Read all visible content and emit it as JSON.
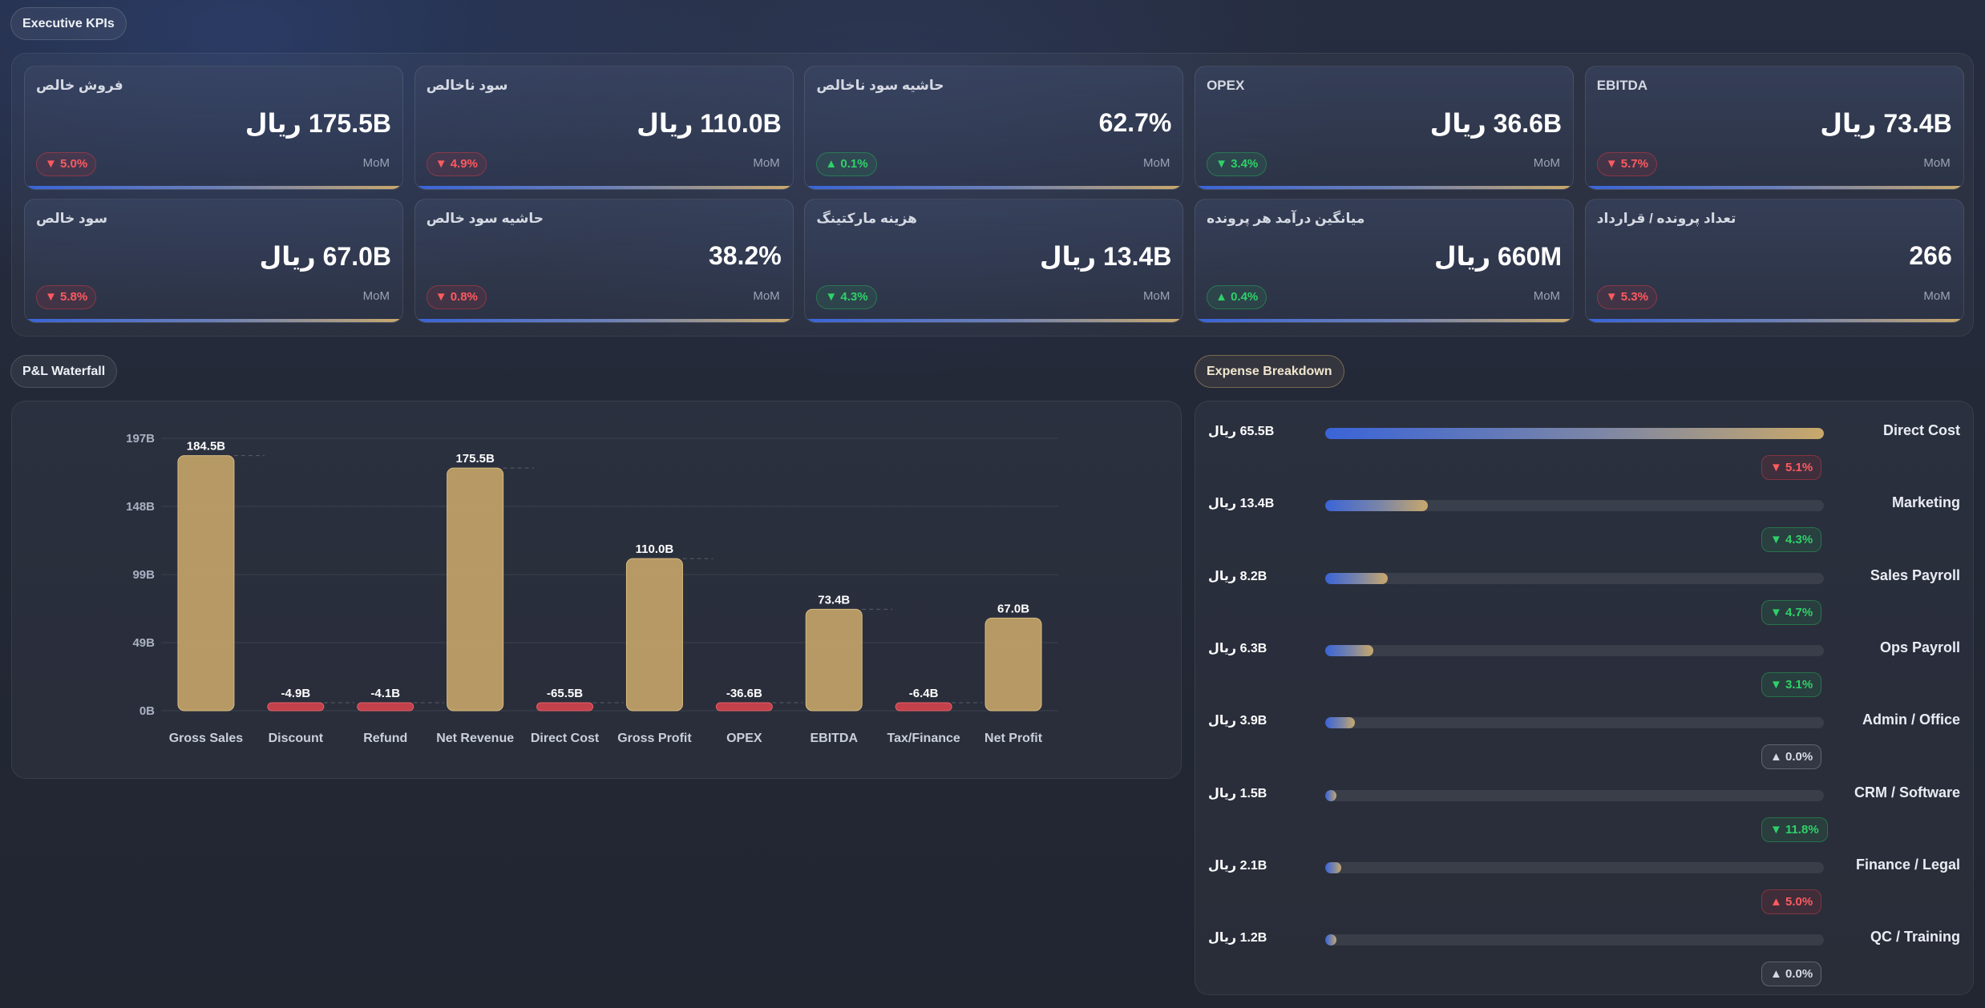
{
  "sections": {
    "kpis_title": "Executive KPIs",
    "waterfall_title": "P&L Waterfall",
    "expense_title": "Expense Breakdown"
  },
  "colors": {
    "positive": "#2fd16a",
    "negative": "#ff5a60",
    "bar_gold": "#c9a86a",
    "bar_red": "#d0434c",
    "accent_blue": "#3a64d8"
  },
  "kpis": [
    {
      "label": "فروش خالص",
      "value": "175.5B ریال",
      "delta": "▼ 5.0%",
      "tone": "red",
      "period": "MoM"
    },
    {
      "label": "سود ناخالص",
      "value": "110.0B ریال",
      "delta": "▼ 4.9%",
      "tone": "red",
      "period": "MoM"
    },
    {
      "label": "حاشیه سود ناخالص",
      "value": "62.7%",
      "delta": "▲ 0.1%",
      "tone": "green",
      "period": "MoM"
    },
    {
      "label": "OPEX",
      "value": "36.6B ریال",
      "delta": "▼ 3.4%",
      "tone": "green",
      "period": "MoM"
    },
    {
      "label": "EBITDA",
      "value": "73.4B ریال",
      "delta": "▼ 5.7%",
      "tone": "red",
      "period": "MoM"
    },
    {
      "label": "سود خالص",
      "value": "67.0B ریال",
      "delta": "▼ 5.8%",
      "tone": "red",
      "period": "MoM"
    },
    {
      "label": "حاشیه سود خالص",
      "value": "38.2%",
      "delta": "▼ 0.8%",
      "tone": "red",
      "period": "MoM"
    },
    {
      "label": "هزینه مارکتینگ",
      "value": "13.4B ریال",
      "delta": "▼ 4.3%",
      "tone": "green",
      "period": "MoM"
    },
    {
      "label": "میانگین درآمد هر پرونده",
      "value": "660M ریال",
      "delta": "▲ 0.4%",
      "tone": "green",
      "period": "MoM"
    },
    {
      "label": "تعداد پرونده / قرارداد",
      "value": "266",
      "delta": "▼ 5.3%",
      "tone": "red",
      "period": "MoM"
    }
  ],
  "chart_data": {
    "type": "bar",
    "subtype": "waterfall",
    "categories": [
      "Gross Sales",
      "Discount",
      "Refund",
      "Net Revenue",
      "Direct Cost",
      "Gross Profit",
      "OPEX",
      "EBITDA",
      "Tax/Finance",
      "Net Profit"
    ],
    "values": [
      184.5,
      -4.9,
      -4.1,
      175.5,
      -65.5,
      110.0,
      -36.6,
      73.4,
      -6.4,
      67.0
    ],
    "value_labels": [
      "184.5B",
      "-4.9B",
      "-4.1B",
      "175.5B",
      "-65.5B",
      "110.0B",
      "-36.6B",
      "73.4B",
      "-6.4B",
      "67.0B"
    ],
    "y_ticks": [
      "0B",
      "49B",
      "99B",
      "148B",
      "197B"
    ],
    "ylim": [
      0,
      197
    ],
    "grid": true,
    "legend": "none"
  },
  "expenses": [
    {
      "amount": "65.5B ریال",
      "name": "Direct Cost",
      "share": 1.0,
      "delta": "▼ 5.1%",
      "tone": "red"
    },
    {
      "amount": "13.4B ریال",
      "name": "Marketing",
      "share": 0.205,
      "delta": "▼ 4.3%",
      "tone": "green"
    },
    {
      "amount": "8.2B ریال",
      "name": "Sales Payroll",
      "share": 0.125,
      "delta": "▼ 4.7%",
      "tone": "green"
    },
    {
      "amount": "6.3B ریال",
      "name": "Ops Payroll",
      "share": 0.096,
      "delta": "▼ 3.1%",
      "tone": "green"
    },
    {
      "amount": "3.9B ریال",
      "name": "Admin / Office",
      "share": 0.06,
      "delta": "▲ 0.0%",
      "tone": "grey"
    },
    {
      "amount": "1.5B ریال",
      "name": "CRM / Software",
      "share": 0.023,
      "delta": "▼ 11.8%",
      "tone": "green"
    },
    {
      "amount": "2.1B ریال",
      "name": "Finance / Legal",
      "share": 0.032,
      "delta": "▲ 5.0%",
      "tone": "red"
    },
    {
      "amount": "1.2B ریال",
      "name": "QC / Training",
      "share": 0.018,
      "delta": "▲ 0.0%",
      "tone": "grey"
    }
  ]
}
